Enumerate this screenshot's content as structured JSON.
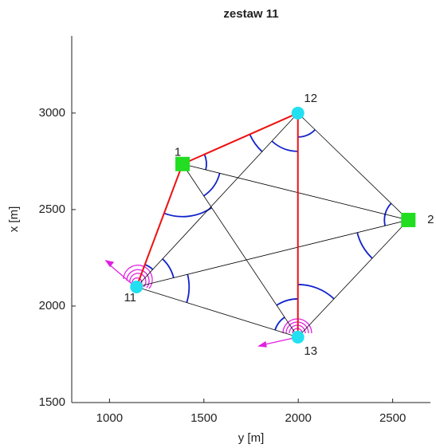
{
  "chart_data": {
    "type": "network",
    "title": "zestaw 11",
    "xlabel": "y [m]",
    "ylabel": "x [m]",
    "xlim": [
      800,
      2700
    ],
    "ylim": [
      1500,
      3400
    ],
    "xticks": [
      1000,
      1500,
      2000,
      2500
    ],
    "yticks": [
      1500,
      2000,
      2500,
      3000
    ],
    "points": [
      {
        "label": "1",
        "x": 1387,
        "y": 2736,
        "marker": "square",
        "color": "#22dd22"
      },
      {
        "label": "2",
        "x": 2583,
        "y": 2446,
        "marker": "square",
        "color": "#22dd22"
      },
      {
        "label": "11",
        "x": 1143,
        "y": 2099,
        "marker": "circle",
        "color": "#22e0f0"
      },
      {
        "label": "12",
        "x": 1998,
        "y": 3000,
        "marker": "circle",
        "color": "#22e0f0"
      },
      {
        "label": "13",
        "x": 1998,
        "y": 1839,
        "marker": "circle",
        "color": "#22e0f0"
      }
    ],
    "lines": [
      {
        "from": "1",
        "to": "2",
        "color": "#000000"
      },
      {
        "from": "1",
        "to": "13",
        "color": "#000000"
      },
      {
        "from": "11",
        "to": "2",
        "color": "#000000"
      },
      {
        "from": "11",
        "to": "12",
        "color": "#000000"
      },
      {
        "from": "11",
        "to": "13",
        "color": "#000000"
      },
      {
        "from": "12",
        "to": "2",
        "color": "#000000"
      },
      {
        "from": "13",
        "to": "2",
        "color": "#000000"
      },
      {
        "from": "11",
        "to": "1",
        "color": "#ee1111"
      },
      {
        "from": "1",
        "to": "12",
        "color": "#ee1111"
      },
      {
        "from": "12",
        "to": "13",
        "color": "#ee1111"
      }
    ],
    "arc_color": "#1122cc"
  }
}
